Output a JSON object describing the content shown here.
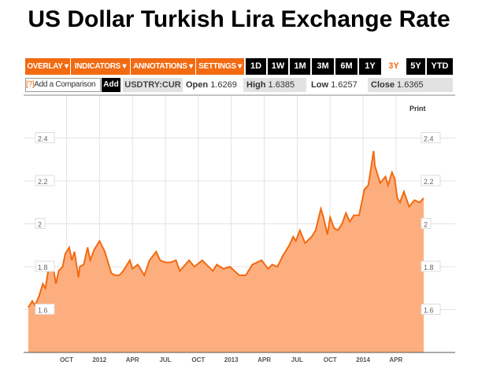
{
  "title": "US Dollar Turkish Lira Exchange Rate",
  "toolbar": {
    "menus": [
      "OVERLAY ▾",
      "INDICATORS ▾",
      "ANNOTATIONS ▾",
      "SETTINGS ▾"
    ],
    "ranges": [
      "1D",
      "1W",
      "1M",
      "3M",
      "6M",
      "1Y",
      "3Y",
      "5Y",
      "YTD"
    ],
    "selected_range": "3Y"
  },
  "quote": {
    "help": "[?]",
    "comparison_placeholder": "Add a Comparison",
    "add": "Add",
    "symbol": "USDTRY:CUR",
    "open_label": "Open",
    "open": "1.6269",
    "high_label": "High",
    "high": "1.6385",
    "low_label": "Low",
    "low": "1.6257",
    "close_label": "Close",
    "close": "1.6365"
  },
  "print": "Print",
  "colors": {
    "accent": "#f26a11",
    "fill": "#fdae7e",
    "line": "#f26a11"
  },
  "chart_data": {
    "type": "area",
    "title": "US Dollar Turkish Lira Exchange Rate",
    "xlabel": "",
    "ylabel": "",
    "xlim": [
      2011.46,
      2014.46
    ],
    "ylim": [
      1.4,
      2.6
    ],
    "grid": true,
    "yticks": [
      {
        "v": 2.4,
        "label": "2.4"
      },
      {
        "v": 2.2,
        "label": "2.2"
      },
      {
        "v": 2.0,
        "label": "2"
      },
      {
        "v": 1.8,
        "label": "1.8"
      },
      {
        "v": 1.6,
        "label": "1.6"
      }
    ],
    "xticks": [
      {
        "v": 2011.75,
        "label": "OCT"
      },
      {
        "v": 2012.0,
        "label": "2012"
      },
      {
        "v": 2012.25,
        "label": "APR"
      },
      {
        "v": 2012.5,
        "label": "JUL"
      },
      {
        "v": 2012.75,
        "label": "OCT"
      },
      {
        "v": 2013.0,
        "label": "2013"
      },
      {
        "v": 2013.25,
        "label": "APR"
      },
      {
        "v": 2013.5,
        "label": "JUL"
      },
      {
        "v": 2013.75,
        "label": "OCT"
      },
      {
        "v": 2014.0,
        "label": "2014"
      },
      {
        "v": 2014.25,
        "label": "APR"
      }
    ],
    "series": [
      {
        "name": "USDTRY",
        "x": [
          2011.46,
          2011.49,
          2011.51,
          2011.54,
          2011.57,
          2011.59,
          2011.61,
          2011.65,
          2011.67,
          2011.69,
          2011.72,
          2011.74,
          2011.77,
          2011.79,
          2011.81,
          2011.84,
          2011.85,
          2011.88,
          2011.91,
          2011.93,
          2011.96,
          2012.0,
          2012.04,
          2012.09,
          2012.12,
          2012.15,
          2012.18,
          2012.23,
          2012.25,
          2012.29,
          2012.34,
          2012.38,
          2012.43,
          2012.46,
          2012.5,
          2012.54,
          2012.58,
          2012.61,
          2012.68,
          2012.72,
          2012.78,
          2012.86,
          2012.89,
          2012.94,
          2012.99,
          2013.06,
          2013.11,
          2013.16,
          2013.23,
          2013.28,
          2013.31,
          2013.35,
          2013.39,
          2013.44,
          2013.47,
          2013.49,
          2013.52,
          2013.56,
          2013.61,
          2013.64,
          2013.68,
          2013.7,
          2013.73,
          2013.75,
          2013.78,
          2013.81,
          2013.84,
          2013.87,
          2013.9,
          2013.93,
          2013.97,
          2013.99,
          2014.01,
          2014.04,
          2014.06,
          2014.08,
          2014.09,
          2014.13,
          2014.17,
          2014.19,
          2014.22,
          2014.24,
          2014.26,
          2014.28,
          2014.31,
          2014.35,
          2014.39,
          2014.43,
          2014.46
        ],
        "values": [
          1.61,
          1.64,
          1.62,
          1.66,
          1.72,
          1.7,
          1.78,
          1.79,
          1.72,
          1.78,
          1.8,
          1.86,
          1.89,
          1.83,
          1.87,
          1.75,
          1.8,
          1.81,
          1.89,
          1.83,
          1.88,
          1.92,
          1.87,
          1.77,
          1.76,
          1.76,
          1.78,
          1.83,
          1.79,
          1.81,
          1.76,
          1.83,
          1.87,
          1.83,
          1.82,
          1.82,
          1.83,
          1.78,
          1.83,
          1.8,
          1.83,
          1.78,
          1.81,
          1.79,
          1.8,
          1.76,
          1.76,
          1.81,
          1.83,
          1.79,
          1.81,
          1.8,
          1.85,
          1.9,
          1.94,
          1.92,
          1.97,
          1.91,
          1.94,
          1.97,
          2.07,
          2.03,
          1.95,
          2.03,
          1.98,
          1.97,
          2.0,
          2.05,
          2.01,
          2.04,
          2.04,
          2.1,
          2.16,
          2.18,
          2.26,
          2.34,
          2.27,
          2.19,
          2.22,
          2.18,
          2.24,
          2.21,
          2.12,
          2.1,
          2.15,
          2.08,
          2.11,
          2.1,
          2.12
        ]
      }
    ]
  }
}
